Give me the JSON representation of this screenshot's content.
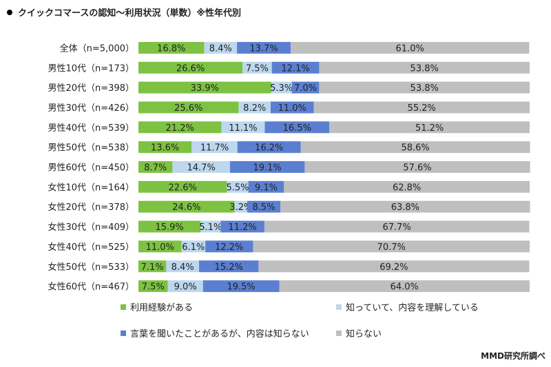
{
  "title": "クイックコマースの認知～利用状況（単数）※性年代別",
  "credit": "MMD研究所調べ",
  "colors": {
    "used": "#7DC242",
    "know_understand": "#BDD7EE",
    "heard": "#5B7FD0",
    "unknown": "#BFBFBF"
  },
  "chart_data": {
    "type": "bar",
    "stacked": "100%",
    "orientation": "horizontal",
    "categories": [
      "全体（n=5,000）",
      "男性10代（n=173）",
      "男性20代（n=398）",
      "男性30代（n=426）",
      "男性40代（n=539）",
      "男性50代（n=538）",
      "男性60代（n=450）",
      "女性10代（n=164）",
      "女性20代（n=378）",
      "女性30代（n=409）",
      "女性40代（n=525）",
      "女性50代（n=533）",
      "女性60代（n=467）"
    ],
    "series": [
      {
        "name": "利用経験がある",
        "color": "#7DC242",
        "values": [
          16.8,
          26.6,
          33.9,
          25.6,
          21.2,
          13.6,
          8.7,
          22.6,
          24.6,
          15.9,
          11.0,
          7.1,
          7.5
        ],
        "labels": [
          "16.8%",
          "26.6%",
          "33.9%",
          "25.6%",
          "21.2%",
          "13.6%",
          "8.7%",
          "22.6%",
          "24.6%",
          "15.9%",
          "11.0%",
          "7.1%",
          "7.5%"
        ]
      },
      {
        "name": "知っていて、内容を理解している",
        "color": "#BDD7EE",
        "values": [
          8.4,
          7.5,
          5.3,
          8.2,
          11.1,
          11.7,
          14.7,
          5.5,
          3.2,
          5.1,
          6.1,
          8.4,
          9.0
        ],
        "labels": [
          "8.4%",
          "7.5%",
          "5.3%",
          "8.2%",
          "11.1%",
          "11.7%",
          "14.7%",
          "5.5%",
          "3.2%",
          "5.1%",
          "6.1%",
          "8.4%",
          "9.0%"
        ]
      },
      {
        "name": "言葉を聞いたことがあるが、内容は知らない",
        "color": "#5B7FD0",
        "values": [
          13.7,
          12.1,
          7.0,
          11.0,
          16.5,
          16.2,
          19.1,
          9.1,
          8.5,
          11.2,
          12.2,
          15.2,
          19.5
        ],
        "labels": [
          "13.7%",
          "12.1%",
          "7.0%",
          "11.0%",
          "16.5%",
          "16.2%",
          "19.1%",
          "9.1%",
          "8.5%",
          "11.2%",
          "12.2%",
          "15.2%",
          "19.5%"
        ]
      },
      {
        "name": "知らない",
        "color": "#BFBFBF",
        "values": [
          61.0,
          53.8,
          53.8,
          55.2,
          51.2,
          58.6,
          57.6,
          62.8,
          63.8,
          67.7,
          70.7,
          69.2,
          64.0
        ],
        "labels": [
          "61.0%",
          "53.8%",
          "53.8%",
          "55.2%",
          "51.2%",
          "58.6%",
          "57.6%",
          "62.8%",
          "63.8%",
          "67.7%",
          "70.7%",
          "69.2%",
          "64.0%"
        ]
      }
    ],
    "xlim": [
      0,
      100
    ],
    "legend_position": "bottom"
  }
}
